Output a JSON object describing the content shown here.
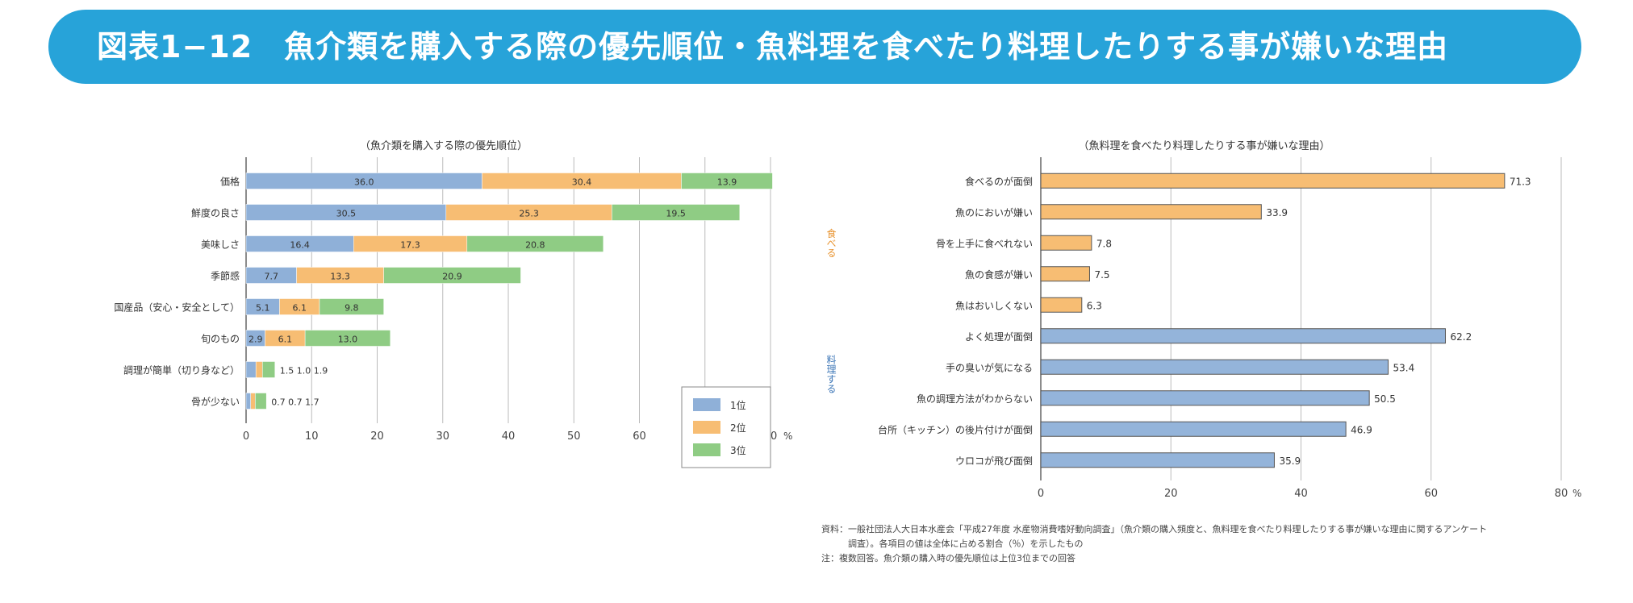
{
  "header": {
    "title": "図表1−12　魚介類を購入する際の優先順位・魚料理を食べたり料理したりする事が嫌いな理由"
  },
  "colors": {
    "banner": "#27a3d9",
    "rank1": "#8fb0d8",
    "rank2": "#f7bd73",
    "rank3": "#8fcc84",
    "blue_bar": "#94b4da",
    "orange_bar": "#f7bd73"
  },
  "footnote": {
    "line1": "資料：一般社団法人大日本水産会「平成27年度 水産物消費嗜好動向調査」（魚介類の購入頻度と、魚料理を食べたり料理したりする事が嫌いな理由に関するアンケート",
    "line2": "　　　調査）。各項目の値は全体に占める割合（％）を示したもの",
    "line3": "注：複数回答。魚介類の購入時の優先順位は上位3位までの回答"
  },
  "chart_data": [
    {
      "type": "bar",
      "stacked": true,
      "orientation": "horizontal",
      "title": "（魚介類を購入する際の優先順位）",
      "categories": [
        "価格",
        "鮮度の良さ",
        "美味しさ",
        "季節感",
        "国産品（安心・安全として）",
        "旬のもの",
        "調理が簡単（切り身など）",
        "骨が少ない"
      ],
      "series": [
        {
          "name": "1位",
          "values": [
            36.0,
            30.5,
            16.4,
            7.7,
            5.1,
            2.9,
            1.5,
            0.7
          ]
        },
        {
          "name": "2位",
          "values": [
            30.4,
            25.3,
            17.3,
            13.3,
            6.1,
            6.1,
            1.0,
            0.7
          ]
        },
        {
          "name": "3位",
          "values": [
            13.9,
            19.5,
            20.8,
            20.9,
            9.8,
            13.0,
            1.9,
            1.7
          ]
        }
      ],
      "visible_labels": [
        [
          "36.0",
          "30.4",
          "13.9"
        ],
        [
          "30.5",
          "25.3",
          "19.5"
        ],
        [
          "16.4",
          "17.3",
          "20.8"
        ],
        [
          "7.7",
          "13.3",
          "20.9"
        ],
        [
          "5.1",
          "6.1",
          "9.8"
        ],
        [
          "2.9",
          "6.1",
          "13.0"
        ],
        [
          "1.5",
          "1.0",
          "1.9"
        ],
        [
          "0.7",
          "0.7",
          "1.7"
        ]
      ],
      "xlim": [
        0,
        80
      ],
      "xticks": [
        "0",
        "10",
        "20",
        "30",
        "40",
        "50",
        "60",
        "70",
        "80"
      ],
      "unit": "%",
      "legend": [
        "1位",
        "2位",
        "3位"
      ],
      "legend_position": "bottom-right"
    },
    {
      "type": "bar",
      "orientation": "horizontal",
      "title": "（魚料理を食べたり料理したりする事が嫌いな理由）",
      "categories": [
        "食べるのが面倒",
        "魚のにおいが嫌い",
        "骨を上手に食べれない",
        "魚の食感が嫌い",
        "魚はおいしくない",
        "よく処理が面倒",
        "手の臭いが気になる",
        "魚の調理方法がわからない",
        "台所（キッチン）の後片付けが面倒",
        "ウロコが飛び面倒"
      ],
      "values": [
        71.3,
        33.9,
        7.8,
        7.5,
        6.3,
        62.2,
        53.4,
        50.5,
        46.9,
        35.9
      ],
      "value_labels": [
        "71.3",
        "33.9",
        "7.8",
        "7.5",
        "6.3",
        "62.2",
        "53.4",
        "50.5",
        "46.9",
        "35.9"
      ],
      "group_labels": [
        "食べる",
        "料理する"
      ],
      "xlim": [
        0,
        80
      ],
      "xticks": [
        "0",
        "20",
        "40",
        "60",
        "80"
      ],
      "unit": "%"
    }
  ]
}
